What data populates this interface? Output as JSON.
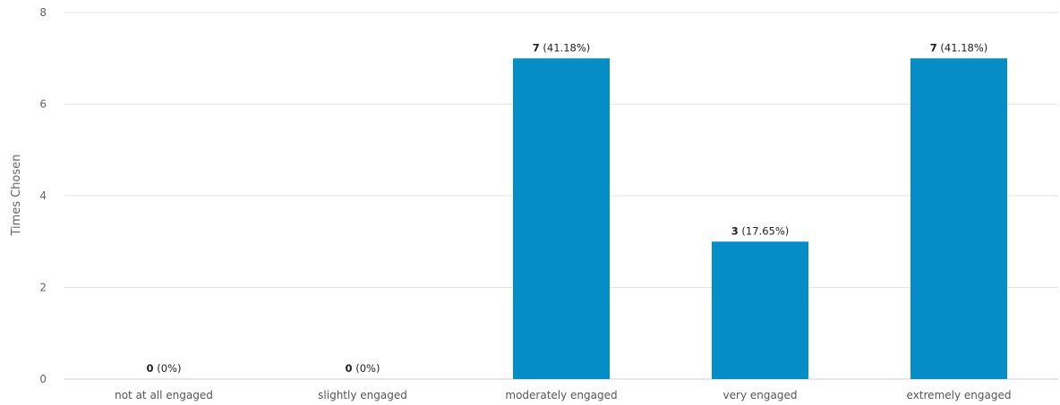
{
  "chart_data": {
    "type": "bar",
    "ylabel": "Times Chosen",
    "xlabel": "",
    "ylim": [
      0,
      8
    ],
    "yticks": [
      0,
      2,
      4,
      6,
      8
    ],
    "grid": true,
    "categories": [
      "not at all engaged",
      "slightly engaged",
      "moderately engaged",
      "very engaged",
      "extremely engaged"
    ],
    "values": [
      0,
      0,
      7,
      3,
      7
    ],
    "percent_labels": [
      "(0%)",
      "(0%)",
      "(41.18%)",
      "(17.65%)",
      "(41.18%)"
    ],
    "bar_color": "#058dc7"
  }
}
